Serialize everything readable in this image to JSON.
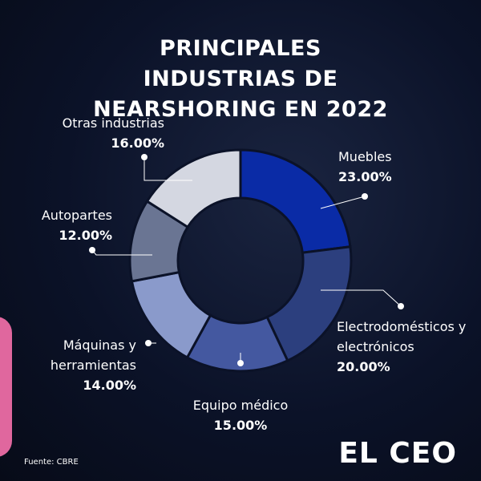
{
  "chart_data": {
    "type": "donut",
    "title": "PRINCIPALES INDUSTRIAS DE NEARSHORING EN 2022",
    "categories": [
      "Muebles",
      "Electrodomésticos y electrónicos",
      "Equipo médico",
      "Máquinas y herramientas",
      "Autopartes",
      "Otras industrias"
    ],
    "values": [
      23,
      20,
      15,
      14,
      12,
      16
    ],
    "value_labels": [
      "23.00%",
      "20.00%",
      "15.00%",
      "14.00%",
      "12.00%",
      "16.00%"
    ],
    "colors": [
      "#0a2ba6",
      "#2c3f7e",
      "#4458a0",
      "#8a9acb",
      "#6a7593",
      "#d4d7e1"
    ],
    "source": "Fuente: CBRE",
    "brand": "EL CEO"
  }
}
